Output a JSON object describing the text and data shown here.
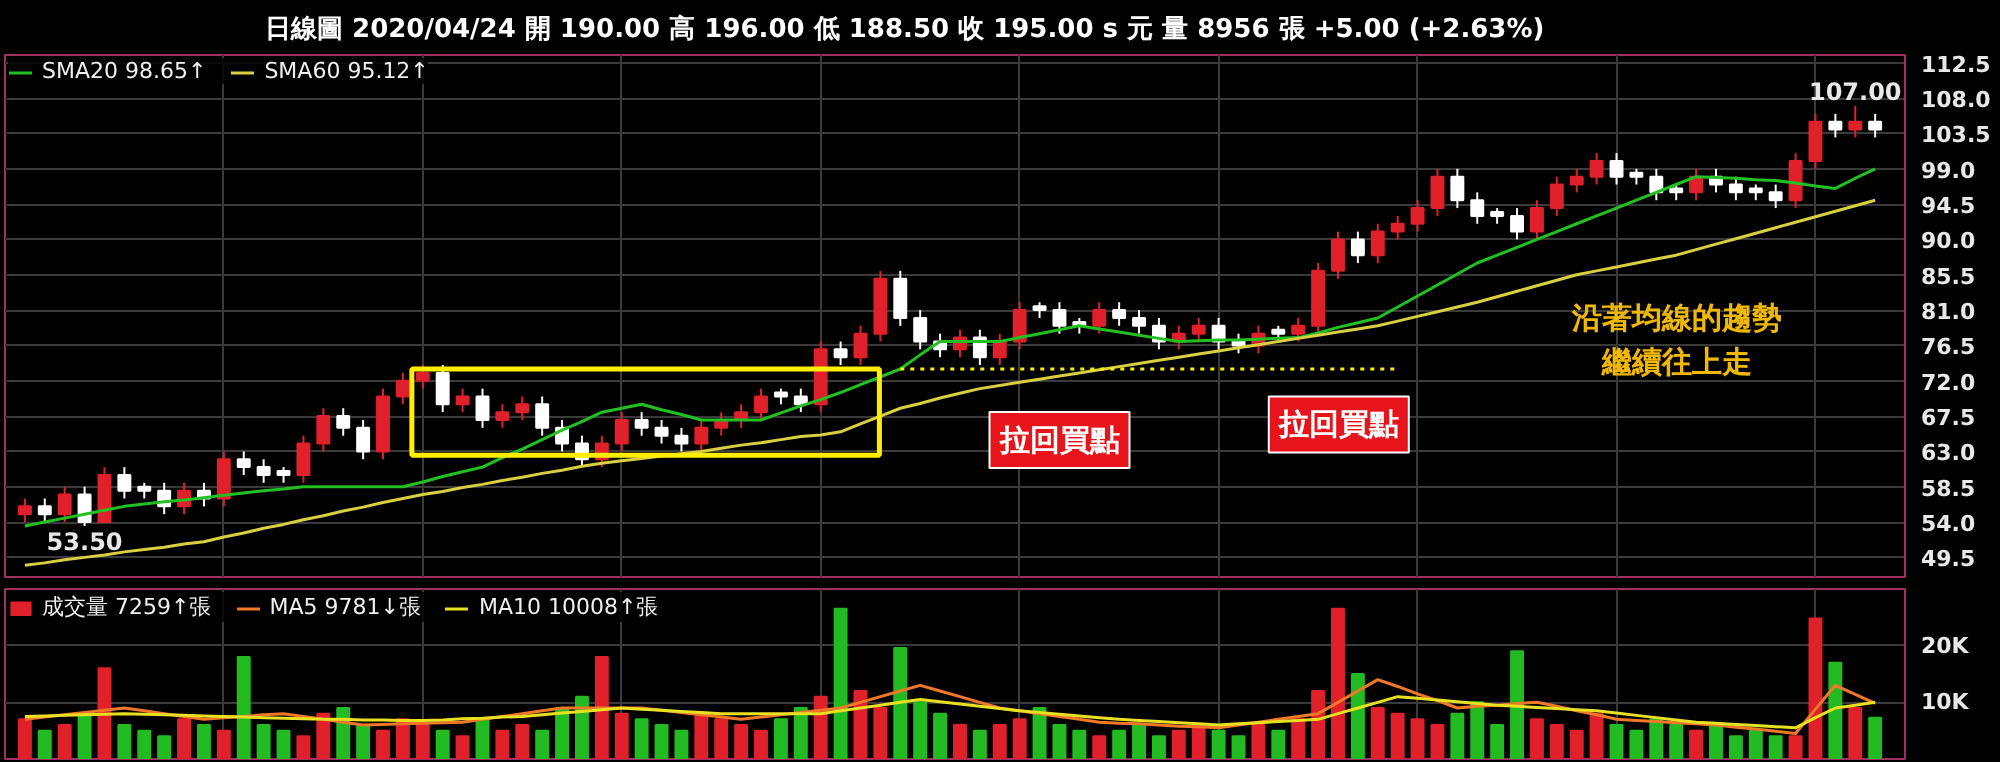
{
  "chart_data": [
    {
      "type": "candlestick",
      "title": "日線圖 2020/04/24 開 190.00 高 196.00 低 188.50 收 195.00 s 元 量 8956 張 +5.00 (+2.63%)",
      "categories": [
        null,
        null,
        null,
        null,
        null,
        null,
        null,
        null,
        null,
        null,
        null,
        null,
        null,
        null,
        null,
        null,
        null,
        null,
        null,
        null,
        null,
        null,
        null,
        null,
        null,
        null,
        null,
        null,
        null,
        null,
        null,
        null,
        null,
        null,
        null,
        null,
        null,
        null,
        null,
        null,
        null,
        null,
        null,
        null,
        null,
        null,
        null,
        null,
        null,
        null,
        null,
        null,
        null,
        null,
        null,
        null,
        null,
        null,
        null,
        null,
        null,
        null,
        null,
        null,
        null,
        null,
        null,
        null,
        null,
        null,
        null,
        null,
        null,
        null,
        null,
        null,
        null,
        null,
        null,
        null,
        null,
        null,
        null,
        null,
        null,
        null,
        null,
        null,
        null,
        null,
        null,
        null,
        null,
        null
      ],
      "ohlc": [
        [
          55,
          57,
          54,
          56
        ],
        [
          56,
          57,
          54,
          55
        ],
        [
          55,
          58.5,
          54,
          57.5
        ],
        [
          57.5,
          58.5,
          53.5,
          54
        ],
        [
          54,
          61,
          54,
          60
        ],
        [
          60,
          61,
          57,
          58
        ],
        [
          58.5,
          59,
          57,
          58
        ],
        [
          58,
          59,
          55,
          56
        ],
        [
          56,
          59,
          55,
          58
        ],
        [
          58,
          59,
          56,
          57
        ],
        [
          57,
          63,
          56,
          62
        ],
        [
          62,
          63,
          60,
          61
        ],
        [
          61,
          62,
          59,
          60
        ],
        [
          60.5,
          61,
          59,
          60
        ],
        [
          60,
          65,
          59,
          64
        ],
        [
          64,
          68.5,
          63,
          67.5
        ],
        [
          67.5,
          68.5,
          65,
          66
        ],
        [
          66,
          67,
          62,
          63
        ],
        [
          63,
          71,
          62,
          70
        ],
        [
          70,
          73,
          69,
          72
        ],
        [
          72,
          74,
          71,
          73
        ],
        [
          73,
          74,
          68,
          69
        ],
        [
          69,
          71,
          68,
          70
        ],
        [
          70,
          71,
          66,
          67
        ],
        [
          67,
          69,
          66,
          68
        ],
        [
          68,
          70,
          67,
          69
        ],
        [
          69,
          70,
          65,
          66
        ],
        [
          66,
          67,
          63,
          64
        ],
        [
          64,
          65,
          61,
          62
        ],
        [
          62,
          65,
          61,
          64
        ],
        [
          64,
          68,
          63,
          67
        ],
        [
          67,
          68,
          65,
          66
        ],
        [
          66,
          67,
          64,
          65
        ],
        [
          65,
          66,
          63,
          64
        ],
        [
          64,
          67,
          63,
          66
        ],
        [
          66,
          68,
          65,
          67
        ],
        [
          67,
          69,
          66,
          68
        ],
        [
          68,
          71,
          67,
          70
        ],
        [
          70.5,
          71,
          69,
          70
        ],
        [
          70,
          71,
          68,
          69
        ],
        [
          69,
          77,
          68,
          76
        ],
        [
          76,
          77,
          74,
          75
        ],
        [
          75,
          79,
          74,
          78
        ],
        [
          78,
          86,
          77,
          85
        ],
        [
          85,
          86,
          79,
          80
        ],
        [
          80,
          81,
          76,
          77
        ],
        [
          77,
          78,
          75,
          76
        ],
        [
          76,
          78.5,
          75,
          77.5
        ],
        [
          77.5,
          78.5,
          74,
          75
        ],
        [
          75,
          78,
          74,
          77
        ],
        [
          77,
          82,
          76,
          81
        ],
        [
          81.5,
          82,
          80,
          81
        ],
        [
          81,
          82,
          78,
          79
        ],
        [
          79.5,
          80,
          78,
          79
        ],
        [
          79,
          82,
          78,
          81
        ],
        [
          81,
          82,
          79,
          80
        ],
        [
          80,
          81,
          78,
          79
        ],
        [
          79,
          80,
          76,
          77
        ],
        [
          77,
          79,
          76,
          78
        ],
        [
          78,
          80,
          77,
          79
        ],
        [
          79,
          80,
          76,
          77
        ],
        [
          77,
          78,
          75.5,
          76.5
        ],
        [
          76.5,
          79,
          75.5,
          78
        ],
        [
          78.5,
          79,
          77,
          78
        ],
        [
          78,
          80,
          77,
          79
        ],
        [
          79,
          87,
          78,
          86
        ],
        [
          86,
          91,
          85,
          90
        ],
        [
          90,
          91,
          87,
          88
        ],
        [
          88,
          92,
          87,
          91
        ],
        [
          91,
          93,
          90,
          92
        ],
        [
          92,
          95,
          91,
          94
        ],
        [
          94,
          99,
          93,
          98
        ],
        [
          98,
          99,
          94,
          95
        ],
        [
          95,
          96,
          92,
          93
        ],
        [
          93.5,
          94,
          92,
          93
        ],
        [
          93,
          94,
          90,
          91
        ],
        [
          91,
          95,
          90,
          94
        ],
        [
          94,
          98,
          93,
          97
        ],
        [
          97,
          99,
          96,
          98
        ],
        [
          98,
          101,
          97,
          100
        ],
        [
          100,
          101,
          97,
          98
        ],
        [
          98.5,
          99,
          97,
          98
        ],
        [
          98,
          99,
          95,
          96
        ],
        [
          96.5,
          97,
          95,
          96
        ],
        [
          96,
          99,
          95,
          98
        ],
        [
          98,
          99,
          96,
          97
        ],
        [
          97,
          98,
          95,
          96
        ],
        [
          96.5,
          97,
          95,
          96
        ],
        [
          96,
          97,
          94,
          95
        ],
        [
          95,
          101,
          94,
          100
        ],
        [
          100,
          106,
          99,
          105
        ],
        [
          105,
          106,
          103,
          104
        ],
        [
          104,
          107,
          103,
          105
        ],
        [
          105,
          106,
          103,
          104
        ]
      ],
      "colors": [
        "#e0202a",
        "#ffffff",
        "#e0202a",
        "#ffffff",
        "#e0202a",
        "#ffffff",
        "#ffffff",
        "#ffffff",
        "#e0202a",
        "#ffffff",
        "#e0202a",
        "#ffffff",
        "#ffffff",
        "#ffffff",
        "#e0202a",
        "#e0202a",
        "#ffffff",
        "#ffffff",
        "#e0202a",
        "#e0202a",
        "#e0202a",
        "#ffffff",
        "#e0202a",
        "#ffffff",
        "#e0202a",
        "#e0202a",
        "#ffffff",
        "#ffffff",
        "#ffffff",
        "#e0202a",
        "#e0202a",
        "#ffffff",
        "#ffffff",
        "#ffffff",
        "#e0202a",
        "#e0202a",
        "#e0202a",
        "#e0202a",
        "#ffffff",
        "#ffffff",
        "#e0202a",
        "#ffffff",
        "#e0202a",
        "#e0202a",
        "#ffffff",
        "#ffffff",
        "#ffffff",
        "#e0202a",
        "#ffffff",
        "#e0202a",
        "#e0202a",
        "#ffffff",
        "#ffffff",
        "#ffffff",
        "#e0202a",
        "#ffffff",
        "#ffffff",
        "#ffffff",
        "#e0202a",
        "#e0202a",
        "#ffffff",
        "#ffffff",
        "#e0202a",
        "#ffffff",
        "#e0202a",
        "#e0202a",
        "#e0202a",
        "#ffffff",
        "#e0202a",
        "#e0202a",
        "#e0202a",
        "#e0202a",
        "#ffffff",
        "#ffffff",
        "#ffffff",
        "#ffffff",
        "#e0202a",
        "#e0202a",
        "#e0202a",
        "#e0202a",
        "#ffffff",
        "#ffffff",
        "#ffffff",
        "#ffffff",
        "#e0202a",
        "#ffffff",
        "#ffffff",
        "#ffffff",
        "#ffffff",
        "#e0202a",
        "#e0202a",
        "#ffffff",
        "#e0202a",
        "#ffffff"
      ],
      "series": [
        {
          "type": "line",
          "name": "SMA20 98.65↑",
          "color": "#22c022",
          "values": [
            53.5,
            54,
            54.5,
            55,
            55.5,
            56,
            56.3,
            56.6,
            56.8,
            57.1,
            57.4,
            57.7,
            58,
            58.2,
            58.5,
            58.5,
            58.5,
            58.5,
            58.5,
            58.5,
            59.1,
            59.8,
            60.4,
            61,
            62.2,
            63.3,
            64.5,
            65.7,
            66.8,
            68,
            68.5,
            69,
            68.3,
            67.7,
            67,
            67,
            67,
            67,
            67.9,
            68.8,
            69.6,
            70.5,
            71.5,
            72.5,
            73.5,
            75.3,
            77,
            77,
            77,
            77,
            77.5,
            78,
            78.5,
            79,
            78.6,
            78.2,
            77.8,
            77.4,
            77,
            77.1,
            77.2,
            77.2,
            77.3,
            77.4,
            77.5,
            78.1,
            78.8,
            79.4,
            80,
            81.4,
            82.8,
            84.2,
            85.6,
            87,
            88,
            89,
            90,
            91,
            92,
            93,
            94,
            95,
            96,
            97,
            98,
            97.9,
            97.8,
            97.6,
            97.5,
            97.2,
            96.8,
            96.5,
            97.8,
            99
          ]
        },
        {
          "type": "line",
          "name": "SMA60 95.12↑",
          "color": "#d8d040",
          "values": [
            48.5,
            48.8,
            49.2,
            49.5,
            49.8,
            50.2,
            50.5,
            50.8,
            51.2,
            51.5,
            52.1,
            52.6,
            53.2,
            53.7,
            54.3,
            54.8,
            55.4,
            55.9,
            56.5,
            57,
            57.5,
            57.9,
            58.4,
            58.8,
            59.3,
            59.7,
            60.2,
            60.6,
            61.1,
            61.5,
            61.8,
            62.1,
            62.4,
            62.7,
            63,
            63.4,
            63.8,
            64.1,
            64.5,
            64.9,
            65.1,
            65.5,
            66.5,
            67.5,
            68.5,
            69.1,
            69.8,
            70.4,
            71,
            71.4,
            71.8,
            72.2,
            72.6,
            73,
            73.4,
            73.8,
            74.2,
            74.6,
            75,
            75.4,
            75.8,
            76.2,
            76.6,
            77,
            77.4,
            77.8,
            78.2,
            78.6,
            79,
            79.6,
            80.2,
            80.8,
            81.4,
            82,
            82.7,
            83.4,
            84.1,
            84.8,
            85.5,
            86,
            86.5,
            87,
            87.5,
            88,
            88.7,
            89.4,
            90.1,
            90.8,
            91.5,
            92.2,
            92.9,
            93.6,
            94.3,
            95
          ]
        },
        {
          "type": "line",
          "color": "#ffee00",
          "line_style": "dotted",
          "values": [
            null,
            null,
            null,
            null,
            null,
            null,
            null,
            null,
            null,
            null,
            null,
            null,
            null,
            null,
            null,
            null,
            null,
            null,
            null,
            null,
            null,
            null,
            null,
            null,
            null,
            null,
            null,
            null,
            null,
            null,
            null,
            null,
            null,
            null,
            null,
            null,
            null,
            null,
            null,
            null,
            null,
            null,
            null,
            null,
            73.5,
            73.5,
            73.5,
            73.5,
            73.5,
            73.5,
            73.5,
            73.5,
            73.5,
            73.5,
            73.5,
            73.5,
            73.5,
            73.5,
            73.5,
            73.5,
            73.5,
            73.5,
            73.5,
            73.5,
            73.5,
            73.5,
            73.5,
            73.5,
            73.5,
            73.5,
            null,
            null,
            null,
            null,
            null,
            null,
            null,
            null,
            null,
            null,
            null,
            null,
            null,
            null,
            null,
            null,
            null,
            null,
            null,
            null,
            null,
            null,
            null,
            null
          ]
        }
      ],
      "annotations": [
        "53.50",
        "107.00",
        "拉回買點",
        "拉回買點",
        "沿著均線的趨勢繼續往上走"
      ],
      "ylim": [
        47,
        113.5
      ],
      "yticks": [
        49.5,
        {
          "value": 54,
          "label": "54.0"
        },
        58.5,
        {
          "value": 63,
          "label": "63.0"
        },
        67.5,
        {
          "value": 72,
          "label": "72.0"
        },
        76.5,
        {
          "value": 81,
          "label": "81.0"
        },
        85.5,
        {
          "value": 90,
          "label": "90.0"
        },
        94.5,
        {
          "value": 99,
          "label": "99.0"
        },
        103.5,
        {
          "value": 108,
          "label": "108.0"
        },
        112.5
      ],
      "grid": true,
      "legend": "top left",
      "tick_labels": "y"
    },
    {
      "type": "bar",
      "categories": [
        null,
        null,
        null,
        null,
        null,
        null,
        null,
        null,
        null,
        null,
        null,
        null,
        null,
        null,
        null,
        null,
        null,
        null,
        null,
        null,
        null,
        null,
        null,
        null,
        null,
        null,
        null,
        null,
        null,
        null,
        null,
        null,
        null,
        null,
        null,
        null,
        null,
        null,
        null,
        null,
        null,
        null,
        null,
        null,
        null,
        null,
        null,
        null,
        null,
        null,
        null,
        null,
        null,
        null,
        null,
        null,
        null,
        null,
        null,
        null,
        null,
        null,
        null,
        null,
        null,
        null,
        null,
        null,
        null,
        null,
        null,
        null,
        null,
        null,
        null,
        null,
        null,
        null,
        null,
        null,
        null,
        null,
        null,
        null,
        null,
        null,
        null,
        null,
        null,
        null,
        null,
        null,
        null,
        null
      ],
      "series": [
        {
          "type": "bar",
          "name": "成交量 7259↑張",
          "values": [
            7000,
            5000,
            6000,
            8000,
            16000,
            6000,
            5000,
            4000,
            7000,
            6000,
            5000,
            18000,
            6000,
            5000,
            4000,
            8000,
            9000,
            6000,
            5000,
            7000,
            6000,
            5000,
            4000,
            7000,
            5000,
            6000,
            5000,
            9000,
            11000,
            18000,
            8000,
            7000,
            6000,
            5000,
            8000,
            7000,
            6000,
            5000,
            7000,
            9000,
            11000,
            26500,
            12000,
            9000,
            19600,
            10000,
            8000,
            6000,
            5000,
            6000,
            7000,
            9000,
            6000,
            5000,
            4000,
            5000,
            6000,
            4000,
            5000,
            6000,
            5000,
            4000,
            6000,
            5000,
            7000,
            12000,
            26500,
            15000,
            9000,
            8000,
            7000,
            6000,
            8000,
            10000,
            6000,
            19000,
            7000,
            6000,
            5000,
            8000,
            6000,
            5000,
            7000,
            6000,
            5000,
            6000,
            4000,
            5000,
            4000,
            4000,
            24800,
            17000,
            9000,
            7300
          ],
          "colors": [
            "#e0202a",
            "#22bb22",
            "#e0202a",
            "#22bb22",
            "#e0202a",
            "#22bb22",
            "#22bb22",
            "#22bb22",
            "#e0202a",
            "#22bb22",
            "#e0202a",
            "#22bb22",
            "#22bb22",
            "#22bb22",
            "#e0202a",
            "#e0202a",
            "#22bb22",
            "#22bb22",
            "#e0202a",
            "#e0202a",
            "#e0202a",
            "#22bb22",
            "#e0202a",
            "#22bb22",
            "#e0202a",
            "#e0202a",
            "#22bb22",
            "#22bb22",
            "#22bb22",
            "#e0202a",
            "#e0202a",
            "#22bb22",
            "#22bb22",
            "#22bb22",
            "#e0202a",
            "#e0202a",
            "#e0202a",
            "#e0202a",
            "#22bb22",
            "#22bb22",
            "#e0202a",
            "#22bb22",
            "#e0202a",
            "#e0202a",
            "#22bb22",
            "#22bb22",
            "#22bb22",
            "#e0202a",
            "#22bb22",
            "#e0202a",
            "#e0202a",
            "#22bb22",
            "#22bb22",
            "#22bb22",
            "#e0202a",
            "#22bb22",
            "#22bb22",
            "#22bb22",
            "#e0202a",
            "#e0202a",
            "#22bb22",
            "#22bb22",
            "#e0202a",
            "#22bb22",
            "#e0202a",
            "#e0202a",
            "#e0202a",
            "#22bb22",
            "#e0202a",
            "#e0202a",
            "#e0202a",
            "#e0202a",
            "#22bb22",
            "#22bb22",
            "#22bb22",
            "#22bb22",
            "#e0202a",
            "#e0202a",
            "#e0202a",
            "#e0202a",
            "#22bb22",
            "#22bb22",
            "#22bb22",
            "#22bb22",
            "#e0202a",
            "#22bb22",
            "#22bb22",
            "#22bb22",
            "#22bb22",
            "#e0202a",
            "#e0202a",
            "#22bb22",
            "#e0202a",
            "#22bb22"
          ]
        },
        {
          "type": "line",
          "name": "MA5 9781↓張",
          "color": "#f07828",
          "values": [
            7000,
            7400,
            7800,
            8200,
            8600,
            9000,
            8500,
            8000,
            7500,
            7000,
            7300,
            7500,
            7800,
            8000,
            7500,
            7000,
            6500,
            6000,
            6100,
            6200,
            6300,
            6400,
            6500,
            7000,
            7500,
            8000,
            8500,
            9000,
            9000,
            9000,
            9000,
            9000,
            8600,
            8200,
            7800,
            7400,
            7000,
            7400,
            7800,
            8200,
            8600,
            9000,
            10000,
            11000,
            12000,
            13000,
            12000,
            11000,
            10000,
            9000,
            8500,
            8000,
            7500,
            7000,
            6500,
            6300,
            6200,
            6000,
            5800,
            5700,
            5500,
            6000,
            6500,
            7000,
            7500,
            8000,
            10000,
            12000,
            14000,
            12800,
            11500,
            10300,
            9000,
            9300,
            9500,
            9800,
            10000,
            9300,
            8500,
            7800,
            7000,
            6800,
            6600,
            6400,
            6200,
            6000,
            5600,
            5300,
            4900,
            4500,
            8800,
            13000,
            11400,
            9800
          ]
        },
        {
          "type": "line",
          "name": "MA10 10008↑張",
          "color": "#e8e020",
          "values": [
            7500,
            7600,
            7700,
            7800,
            7900,
            8000,
            7900,
            7800,
            7700,
            7600,
            7500,
            7400,
            7300,
            7200,
            7100,
            7000,
            7000,
            6900,
            6900,
            6800,
            6800,
            6900,
            7100,
            7200,
            7400,
            7500,
            7800,
            8100,
            8400,
            8700,
            9000,
            8800,
            8600,
            8400,
            8200,
            8000,
            8000,
            8000,
            8000,
            8000,
            8000,
            8500,
            9000,
            9500,
            10000,
            10500,
            10100,
            9700,
            9300,
            8900,
            8500,
            8200,
            7900,
            7600,
            7300,
            7000,
            6800,
            6600,
            6400,
            6200,
            6000,
            6200,
            6400,
            6600,
            6800,
            7000,
            8000,
            9000,
            10000,
            11000,
            10700,
            10400,
            10100,
            9800,
            9500,
            9300,
            9100,
            8900,
            8700,
            8500,
            8100,
            7700,
            7300,
            6900,
            6500,
            6300,
            6100,
            5900,
            5700,
            5500,
            7300,
            9000,
            9500,
            10000
          ]
        }
      ],
      "ylim": [
        0,
        30000
      ],
      "yticks": [
        {
          "value": 10000,
          "label": "10K"
        },
        {
          "value": 20000,
          "label": "20K"
        }
      ],
      "grid": true,
      "legend": "top left",
      "tick_labels": "y"
    }
  ]
}
